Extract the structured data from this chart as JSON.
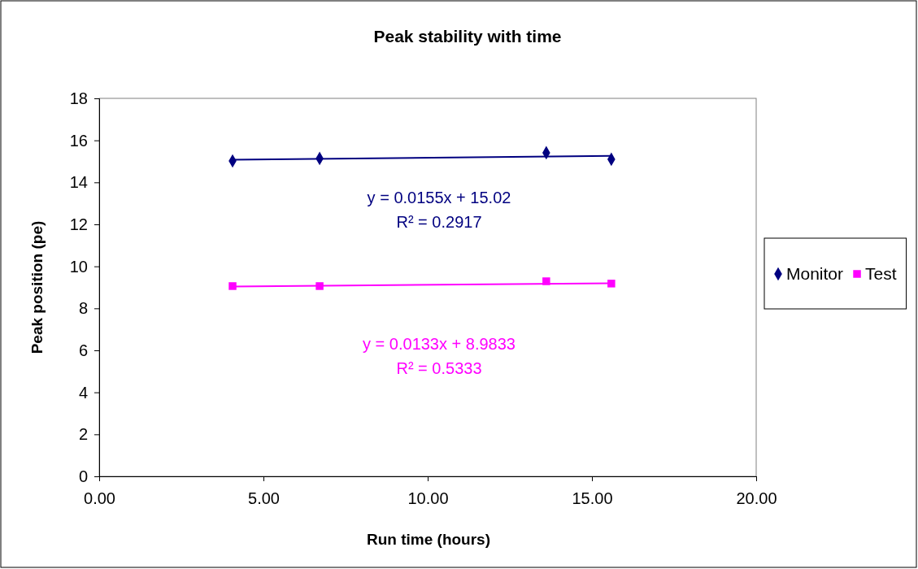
{
  "chart_data": {
    "type": "scatter",
    "title": "Peak stability with time",
    "xlabel": "Run time (hours)",
    "ylabel": "Peak position (pe)",
    "xlim": [
      0,
      20
    ],
    "xticks": [
      {
        "value": 0,
        "label": "0.00"
      },
      {
        "value": 5,
        "label": "5.00"
      },
      {
        "value": 10,
        "label": "10.00"
      },
      {
        "value": 15,
        "label": "15.00"
      },
      {
        "value": 20,
        "label": "20.00"
      }
    ],
    "ylim": [
      0,
      18
    ],
    "yticks": [
      0,
      2,
      4,
      6,
      8,
      10,
      12,
      14,
      16,
      18
    ],
    "grid": false,
    "legend": "right",
    "series": [
      {
        "name": "Monitor",
        "color": "#000080",
        "marker": "diamond",
        "x": [
          4.06,
          6.71,
          13.61,
          15.59
        ],
        "values": [
          15.02,
          15.14,
          15.41,
          15.1
        ]
      },
      {
        "name": "Test",
        "color": "#ff00ff",
        "marker": "square",
        "x": [
          4.06,
          6.71,
          13.61,
          15.59
        ],
        "values": [
          9.06,
          9.06,
          9.29,
          9.18
        ]
      },
      {
        "type": "line",
        "color": "#000080",
        "marker": "none",
        "x": [
          4.06,
          15.59
        ],
        "values": [
          15.08,
          15.26
        ]
      },
      {
        "type": "line",
        "color": "#ff00ff",
        "marker": "none",
        "x": [
          4.06,
          15.59
        ],
        "values": [
          9.04,
          9.19
        ]
      }
    ],
    "annotations": [
      "y = 0.0155x + 15.02\nR² = 0.2917",
      "y = 0.0133x + 8.9833\nR² = 0.5333"
    ]
  }
}
